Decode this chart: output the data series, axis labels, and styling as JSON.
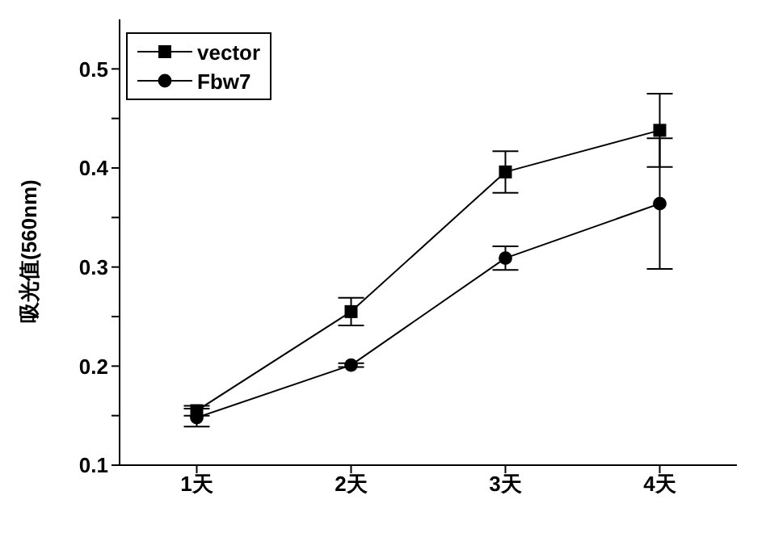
{
  "chart_data": {
    "type": "line",
    "ylabel": "吸光值(560nm)",
    "categories": [
      "1天",
      "2天",
      "3天",
      "4天"
    ],
    "series": [
      {
        "name": "vector",
        "color": "#000000",
        "marker": "square",
        "values": [
          0.155,
          0.255,
          0.396,
          0.438
        ],
        "errors": [
          0.005,
          0.014,
          0.021,
          0.037
        ]
      },
      {
        "name": "Fbw7",
        "color": "#000000",
        "marker": "circle",
        "values": [
          0.148,
          0.201,
          0.309,
          0.364
        ],
        "errors": [
          0.009,
          0.002,
          0.012,
          0.066
        ]
      }
    ],
    "ylim": [
      0.1,
      0.55
    ],
    "yticks": [
      0.1,
      {
        "value": 0.15,
        "label": null
      },
      0.2,
      {
        "value": 0.25,
        "label": null
      },
      0.3,
      {
        "value": 0.35,
        "label": null
      },
      0.4,
      {
        "value": 0.45,
        "label": null
      },
      0.5
    ],
    "legend": "top left",
    "grid": false
  }
}
